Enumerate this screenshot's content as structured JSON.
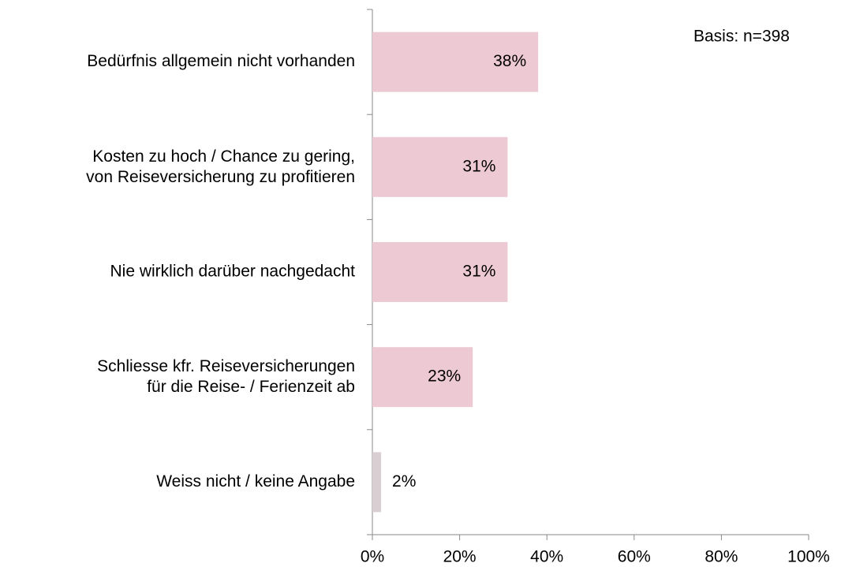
{
  "chart_data": {
    "type": "barh",
    "annotation": "Basis: n=398",
    "categories": [
      "Bedürfnis allgemein nicht vorhanden",
      "Kosten zu hoch / Chance zu gering,\nvon Reiseversicherung zu profitieren",
      "Nie wirklich darüber nachgedacht",
      "Schliesse kfr. Reiseversicherungen\nfür die Reise- / Ferienzeit ab",
      "Weiss nicht / keine Angabe"
    ],
    "values": [
      38,
      31,
      31,
      23,
      2
    ],
    "value_labels": [
      "38%",
      "31%",
      "31%",
      "23%",
      "2%"
    ],
    "colors": [
      "#edc9d4",
      "#edc9d4",
      "#edc9d4",
      "#edc9d4",
      "#d9cfd3"
    ],
    "xlim": [
      0,
      100
    ],
    "xticks": [
      {
        "value": 0,
        "label": "0%"
      },
      {
        "value": 20,
        "label": "20%"
      },
      {
        "value": 40,
        "label": "40%"
      },
      {
        "value": 60,
        "label": "60%"
      },
      {
        "value": 80,
        "label": "80%"
      },
      {
        "value": 100,
        "label": "100%"
      }
    ]
  }
}
